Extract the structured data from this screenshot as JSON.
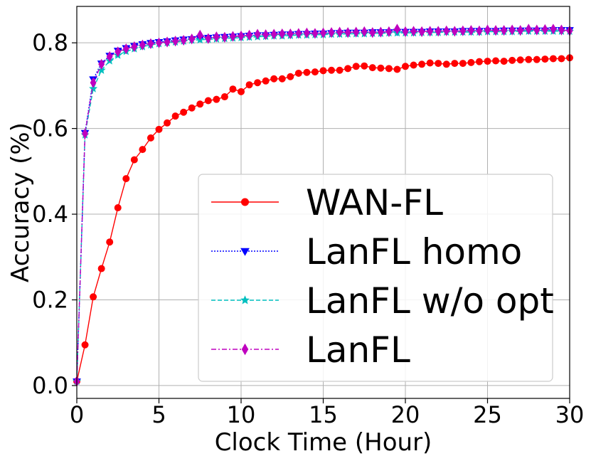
{
  "chart_data": {
    "type": "line",
    "title": "",
    "xlabel": "Clock Time (Hour)",
    "ylabel": "Accuracy (%)",
    "xlim": [
      0,
      30
    ],
    "ylim": [
      -0.03,
      0.885
    ],
    "xticks": [
      0,
      5,
      10,
      15,
      20,
      25,
      30
    ],
    "xtick_labels": [
      "0",
      "5",
      "10",
      "15",
      "20",
      "25",
      "30"
    ],
    "yticks": [
      0.0,
      0.2,
      0.4,
      0.6,
      0.8
    ],
    "ytick_labels": [
      "0.0",
      "0.2",
      "0.4",
      "0.6",
      "0.8"
    ],
    "grid": true,
    "legend_position": "lower-right",
    "series": [
      {
        "name": "WAN-FL",
        "color": "#ff0000",
        "marker": "circle",
        "linestyle": "solid",
        "x": [
          0,
          0.5,
          1,
          1.5,
          2,
          2.5,
          3,
          3.5,
          4,
          4.5,
          5,
          5.5,
          6,
          6.5,
          7,
          7.5,
          8,
          8.5,
          9,
          9.5,
          10,
          10.5,
          11,
          11.5,
          12,
          12.5,
          13,
          13.5,
          14,
          14.5,
          15,
          15.5,
          16,
          16.5,
          17,
          17.5,
          18,
          18.5,
          19,
          19.5,
          20,
          20.5,
          21,
          21.5,
          22,
          22.5,
          23,
          23.5,
          24,
          24.5,
          25,
          25.5,
          26,
          26.5,
          27,
          27.5,
          28,
          28.5,
          29,
          29.5,
          30
        ],
        "y": [
          0.01,
          0.095,
          0.207,
          0.273,
          0.335,
          0.415,
          0.483,
          0.527,
          0.551,
          0.578,
          0.598,
          0.613,
          0.629,
          0.638,
          0.648,
          0.657,
          0.665,
          0.668,
          0.674,
          0.692,
          0.686,
          0.702,
          0.707,
          0.711,
          0.716,
          0.716,
          0.721,
          0.729,
          0.731,
          0.732,
          0.735,
          0.736,
          0.736,
          0.74,
          0.745,
          0.746,
          0.742,
          0.741,
          0.74,
          0.738,
          0.745,
          0.748,
          0.75,
          0.753,
          0.752,
          0.75,
          0.752,
          0.752,
          0.754,
          0.756,
          0.757,
          0.758,
          0.757,
          0.759,
          0.76,
          0.761,
          0.761,
          0.762,
          0.763,
          0.763,
          0.765
        ]
      },
      {
        "name": "LanFL homo",
        "color": "#0000ff",
        "marker": "triangle-down",
        "linestyle": "dotted",
        "x": [
          0,
          0.5,
          1,
          1.5,
          2,
          2.5,
          3,
          3.5,
          4,
          4.5,
          5,
          5.5,
          6,
          6.5,
          7,
          7.5,
          8,
          8.5,
          9,
          9.5,
          10,
          10.5,
          11,
          11.5,
          12,
          12.5,
          13,
          13.5,
          14,
          14.5,
          15,
          15.5,
          16,
          16.5,
          17,
          17.5,
          18,
          18.5,
          19,
          19.5,
          20,
          20.5,
          21,
          21.5,
          22,
          22.5,
          23,
          23.5,
          24,
          24.5,
          25,
          25.5,
          26,
          26.5,
          27,
          27.5,
          28,
          28.5,
          29,
          29.5,
          30
        ],
        "y": [
          0.01,
          0.59,
          0.715,
          0.752,
          0.77,
          0.782,
          0.788,
          0.793,
          0.797,
          0.8,
          0.802,
          0.804,
          0.806,
          0.808,
          0.809,
          0.811,
          0.812,
          0.813,
          0.814,
          0.815,
          0.816,
          0.817,
          0.818,
          0.818,
          0.819,
          0.82,
          0.82,
          0.821,
          0.821,
          0.822,
          0.822,
          0.823,
          0.823,
          0.824,
          0.824,
          0.824,
          0.825,
          0.825,
          0.825,
          0.826,
          0.826,
          0.826,
          0.826,
          0.827,
          0.827,
          0.827,
          0.827,
          0.828,
          0.828,
          0.828,
          0.828,
          0.828,
          0.829,
          0.829,
          0.829,
          0.829,
          0.829,
          0.829,
          0.83,
          0.83,
          0.83
        ]
      },
      {
        "name": "LanFL w/o opt",
        "color": "#00bfbf",
        "marker": "star",
        "linestyle": "dashed",
        "x": [
          0,
          0.5,
          1,
          1.5,
          2,
          2.5,
          3,
          3.5,
          4,
          4.5,
          5,
          5.5,
          6,
          6.5,
          7,
          7.5,
          8,
          8.5,
          9,
          9.5,
          10,
          10.5,
          11,
          11.5,
          12,
          12.5,
          13,
          13.5,
          14,
          14.5,
          15,
          15.5,
          16,
          16.5,
          17,
          17.5,
          18,
          18.5,
          19,
          19.5,
          20,
          20.5,
          21,
          21.5,
          22,
          22.5,
          23,
          23.5,
          24,
          24.5,
          25,
          25.5,
          26,
          26.5,
          27,
          27.5,
          28,
          28.5,
          29,
          29.5,
          30
        ],
        "y": [
          0.01,
          0.585,
          0.693,
          0.736,
          0.758,
          0.771,
          0.78,
          0.786,
          0.791,
          0.795,
          0.798,
          0.8,
          0.802,
          0.804,
          0.806,
          0.807,
          0.808,
          0.809,
          0.81,
          0.811,
          0.812,
          0.813,
          0.814,
          0.815,
          0.816,
          0.816,
          0.817,
          0.818,
          0.818,
          0.819,
          0.819,
          0.82,
          0.82,
          0.821,
          0.821,
          0.821,
          0.822,
          0.822,
          0.823,
          0.823,
          0.823,
          0.823,
          0.824,
          0.824,
          0.824,
          0.825,
          0.825,
          0.825,
          0.825,
          0.825,
          0.826,
          0.826,
          0.826,
          0.826,
          0.827,
          0.827,
          0.827,
          0.827,
          0.827,
          0.827,
          0.827
        ]
      },
      {
        "name": "LanFL",
        "color": "#bf00bf",
        "marker": "thin-diamond",
        "linestyle": "dashdot",
        "x": [
          0,
          0.5,
          1,
          1.5,
          2,
          2.5,
          3,
          3.5,
          4,
          4.5,
          5,
          5.5,
          6,
          6.5,
          7,
          7.5,
          8,
          8.5,
          9,
          9.5,
          10,
          10.5,
          11,
          11.5,
          12,
          12.5,
          13,
          13.5,
          14,
          14.5,
          15,
          15.5,
          16,
          16.5,
          17,
          17.5,
          18,
          18.5,
          19,
          19.5,
          20,
          20.5,
          21,
          21.5,
          22,
          22.5,
          23,
          23.5,
          24,
          24.5,
          25,
          25.5,
          26,
          26.5,
          27,
          27.5,
          28,
          28.5,
          29,
          29.5,
          30
        ],
        "y": [
          0.01,
          0.588,
          0.707,
          0.75,
          0.768,
          0.779,
          0.786,
          0.791,
          0.795,
          0.798,
          0.8,
          0.802,
          0.804,
          0.806,
          0.809,
          0.818,
          0.81,
          0.814,
          0.813,
          0.815,
          0.816,
          0.818,
          0.82,
          0.819,
          0.82,
          0.821,
          0.821,
          0.822,
          0.823,
          0.822,
          0.823,
          0.824,
          0.825,
          0.824,
          0.825,
          0.826,
          0.824,
          0.825,
          0.826,
          0.832,
          0.826,
          0.827,
          0.826,
          0.827,
          0.827,
          0.828,
          0.827,
          0.828,
          0.829,
          0.828,
          0.83,
          0.829,
          0.829,
          0.83,
          0.829,
          0.832,
          0.83,
          0.831,
          0.832,
          0.83,
          0.828
        ]
      }
    ]
  }
}
